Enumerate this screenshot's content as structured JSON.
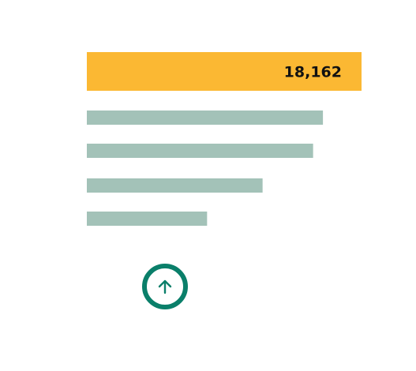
{
  "chart_data": {
    "type": "bar",
    "orientation": "horizontal",
    "categories": [
      "",
      "",
      "",
      "",
      ""
    ],
    "values": [
      18162,
      15610,
      14960,
      11620,
      7950
    ],
    "data_labels": [
      "18,162",
      "",
      "",
      "",
      ""
    ],
    "highlight_index": 0,
    "xlim": [
      0,
      18162
    ],
    "title": "",
    "xlabel": "",
    "ylabel": "",
    "grid": false,
    "legend": "none"
  },
  "colors": {
    "highlight_bar": "#fbb833",
    "other_bars": "#a3c2b8",
    "label_text": "#111111",
    "button_ring": "#0a7f6a",
    "button_arrow": "#0a7f6a"
  },
  "controls": {
    "scroll_button_icon": "arrow-up-icon"
  }
}
